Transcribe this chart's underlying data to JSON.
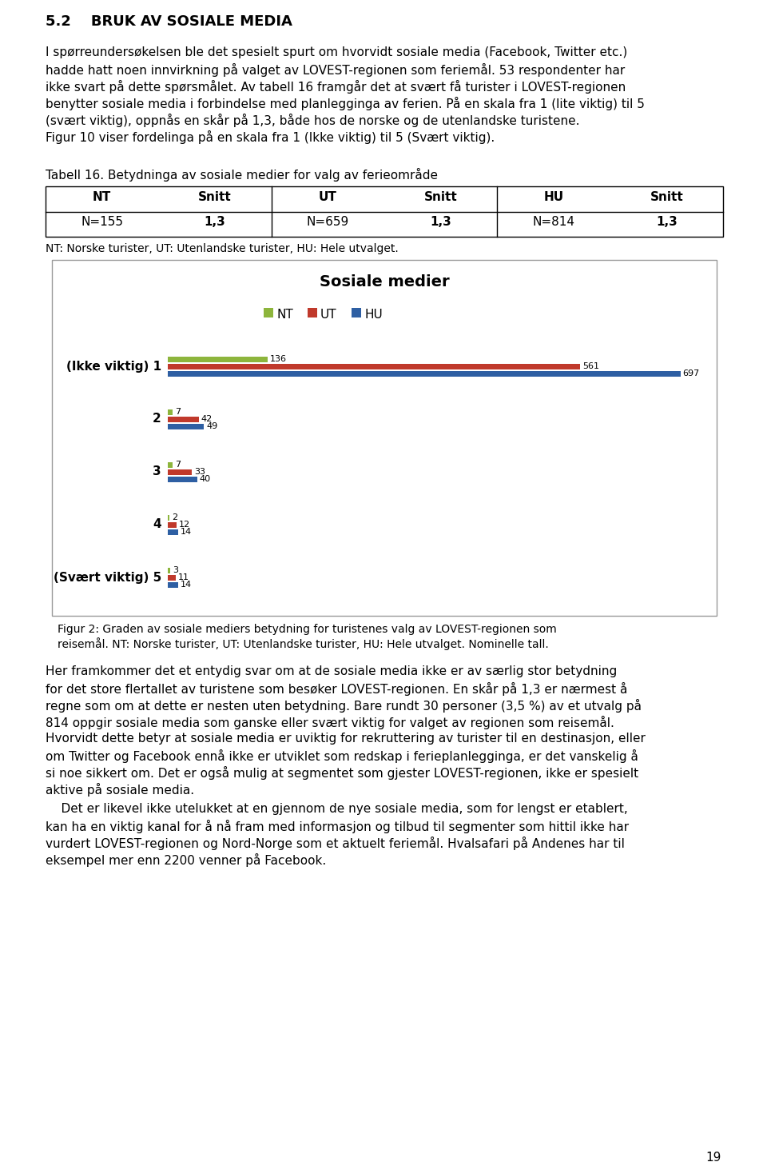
{
  "title_section": "5.2    BRUK AV SOSIALE MEDIA",
  "table_caption": "Tabell 16. Betydninga av sosiale medier for valg av ferieområde",
  "table_headers": [
    "NT",
    "Snitt",
    "UT",
    "Snitt",
    "HU",
    "Snitt"
  ],
  "table_row": [
    "N=155",
    "1,3",
    "N=659",
    "1,3",
    "N=814",
    "1,3"
  ],
  "table_note": "NT: Norske turister, UT: Utenlandske turister, HU: Hele utvalget.",
  "chart_title": "Sosiale medier",
  "legend_labels": [
    "NT",
    "UT",
    "HU"
  ],
  "bar_colors": [
    "#8db53c",
    "#c0392b",
    "#2e5fa3"
  ],
  "categories": [
    "(Ikke viktig) 1",
    "2",
    "3",
    "4",
    "(Svært viktig) 5"
  ],
  "NT_values": [
    136,
    7,
    7,
    2,
    3
  ],
  "UT_values": [
    561,
    42,
    33,
    12,
    11
  ],
  "HU_values": [
    697,
    49,
    40,
    14,
    14
  ],
  "fig_caption_line1": "Figur 2: Graden av sosiale mediers betydning for turistenes valg av LOVEST-regionen som",
  "fig_caption_line2": "reisemål. NT: Norske turister, UT: Utenlandske turister, HU: Hele utvalget. Nominelle tall.",
  "para1_lines": [
    "I spørreundersøkelsen ble det spesielt spurt om hvorvidt sosiale media (Facebook, Twitter etc.)",
    "hadde hatt noen innvirkning på valget av LOVEST-regionen som feriemål. 53 respondenter har",
    "ikke svart på dette spørsmålet. Av tabell 16 framgår det at svært få turister i LOVEST-regionen",
    "benytter sosiale media i forbindelse med planlegginga av ferien. På en skala fra 1 (lite viktig) til 5",
    "(svært viktig), oppnås en skår på 1,3, både hos de norske og de utenlandske turistene.",
    "Figur 10 viser fordelinga på en skala fra 1 (Ikke viktig) til 5 (Svært viktig)."
  ],
  "para2_lines": [
    "Her framkommer det et entydig svar om at de sosiale media ikke er av særlig stor betydning",
    "for det store flertallet av turistene som besøker LOVEST-regionen. En skår på 1,3 er nærmest å",
    "regne som om at dette er nesten uten betydning. Bare rundt 30 personer (3,5 %) av et utvalg på",
    "814 oppgir sosiale media som ganske eller svært viktig for valget av regionen som reisemål.",
    "Hvorvidt dette betyr at sosiale media er uviktig for rekruttering av turister til en destinasjon, eller",
    "om Twitter og Facebook ennå ikke er utviklet som redskap i ferieplanlegginga, er det vanskelig å",
    "si noe sikkert om. Det er også mulig at segmentet som gjester LOVEST-regionen, ikke er spesielt",
    "aktive på sosiale media."
  ],
  "para3_lines": [
    "    Det er likevel ikke utelukket at en gjennom de nye sosiale media, som for lengst er etablert,",
    "kan ha en viktig kanal for å nå fram med informasjon og tilbud til segmenter som hittil ikke har",
    "vurdert LOVEST-regionen og Nord-Norge som et aktuelt feriemål. Hvalsafari på Andenes har til",
    "eksempel mer enn 2200 venner på Facebook."
  ],
  "page_number": "19",
  "background_color": "#ffffff"
}
